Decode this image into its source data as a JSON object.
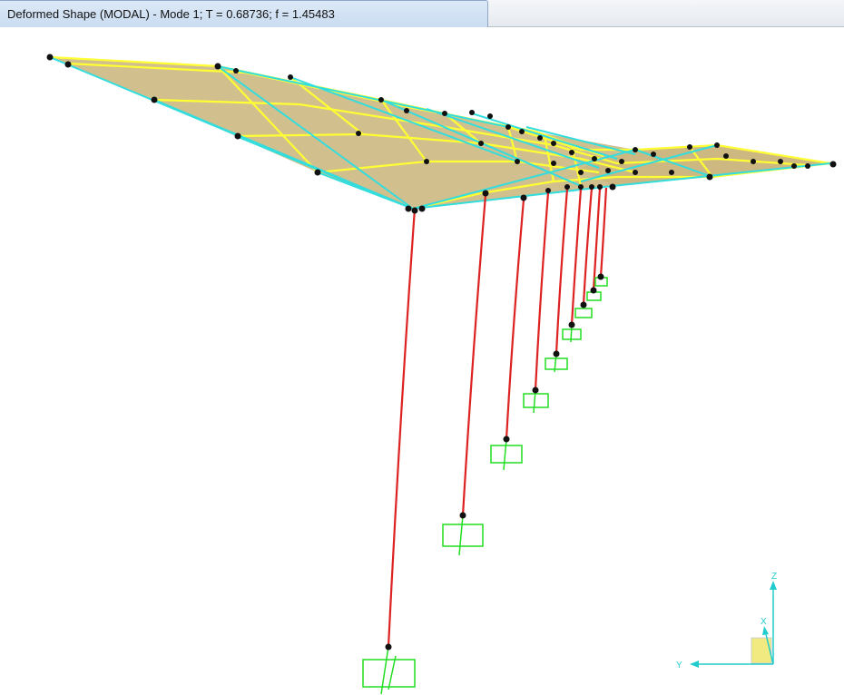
{
  "window": {
    "tab_title": "Deformed Shape (MODAL) - Mode 1; T = 0.68736;  f = 1.45483"
  },
  "viewport": {
    "view": "3-D deformed shape",
    "mode": 1,
    "period_T": 0.68736,
    "frequency_f": 1.45483
  },
  "axes_triad": {
    "z_label": "Z",
    "x_label": "X",
    "y_label": "Y"
  },
  "colors": {
    "slab_fill": "#c9b47a",
    "frame_yellow": "#ffff33",
    "frame_cyan": "#33dddd",
    "column_red": "#dd2222",
    "joint_black": "#111111",
    "support_green": "#22dd22",
    "axis_cyan": "#22cccc"
  }
}
